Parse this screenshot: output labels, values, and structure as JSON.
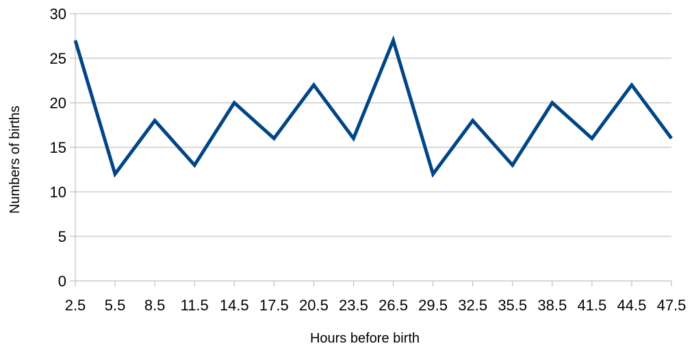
{
  "chart_data": {
    "type": "line",
    "xlabel": "Hours before birth",
    "ylabel": "Numbers of births",
    "categories": [
      "2.5",
      "5.5",
      "8.5",
      "11.5",
      "14.5",
      "17.5",
      "20.5",
      "23.5",
      "26.5",
      "29.5",
      "32.5",
      "35.5",
      "38.5",
      "41.5",
      "44.5",
      "47.5"
    ],
    "series": [
      {
        "values": [
          27,
          12,
          18,
          13,
          20,
          16,
          22,
          16,
          27,
          12,
          18,
          13,
          20,
          16,
          22,
          16
        ],
        "color": "#004586"
      }
    ],
    "ylim": [
      0,
      30
    ],
    "yticks": [
      0,
      5,
      10,
      15,
      20,
      25,
      30
    ],
    "grid": true,
    "grid_color": "#b3b3b3",
    "legend": "none"
  }
}
